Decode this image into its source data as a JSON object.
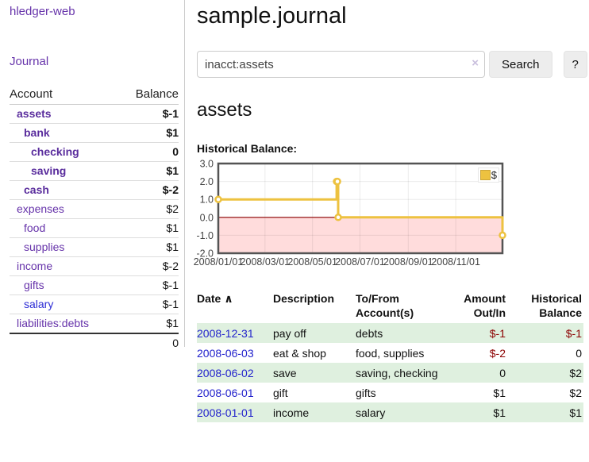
{
  "app": {
    "brand": "hledger-web",
    "nav_journal": "Journal"
  },
  "colors": {
    "link_purple": "#6633aa",
    "link_blue": "#2b2bd5",
    "negative": "#8b0000",
    "negative_muted": "#b36b6b",
    "row_green": "#dff0df",
    "series_yellow": "#edc240",
    "negative_region": "#ffdcdc",
    "zero_line": "#8b0000"
  },
  "sidebar": {
    "accounts_header": {
      "account": "Account",
      "balance": "Balance"
    },
    "accounts": [
      {
        "name": "assets",
        "depth": 1,
        "bold": true,
        "balance": "$-1",
        "negative": "strong"
      },
      {
        "name": "bank",
        "depth": 2,
        "bold": true,
        "balance": "$1",
        "negative": "none"
      },
      {
        "name": "checking",
        "depth": 3,
        "bold": true,
        "balance": "0",
        "negative": "none"
      },
      {
        "name": "saving",
        "depth": 3,
        "bold": true,
        "balance": "$1",
        "negative": "none"
      },
      {
        "name": "cash",
        "depth": 2,
        "bold": true,
        "balance": "$-2",
        "negative": "strong"
      },
      {
        "name": "expenses",
        "depth": 1,
        "bold": false,
        "balance": "$2",
        "negative": "none"
      },
      {
        "name": "food",
        "depth": 2,
        "bold": false,
        "balance": "$1",
        "negative": "none"
      },
      {
        "name": "supplies",
        "depth": 2,
        "bold": false,
        "balance": "$1",
        "negative": "none"
      },
      {
        "name": "income",
        "depth": 1,
        "bold": false,
        "balance": "$-2",
        "negative": "muted"
      },
      {
        "name": "gifts",
        "depth": 2,
        "bold": false,
        "balance": "$-1",
        "negative": "muted"
      },
      {
        "name": "salary",
        "depth": 2,
        "bold": false,
        "balance": "$-1",
        "negative": "muted",
        "blue": true
      },
      {
        "name": "liabilities:debts",
        "depth": 1,
        "bold": false,
        "balance": "$1",
        "negative": "none"
      }
    ],
    "total": "0"
  },
  "header": {
    "title": "sample.journal"
  },
  "search": {
    "query": "inacct:assets",
    "clear_icon": "×",
    "button": "Search",
    "help": "?"
  },
  "account_page": {
    "title": "assets",
    "chart_label": "Historical Balance:"
  },
  "chart_data": {
    "type": "line",
    "title": "Historical Balance:",
    "series": [
      {
        "name": "$",
        "color": "#edc240",
        "step": true,
        "points": [
          [
            "2008-01-01",
            1
          ],
          [
            "2008-06-01",
            2
          ],
          [
            "2008-06-02",
            2
          ],
          [
            "2008-06-03",
            0
          ],
          [
            "2008-12-31",
            -1
          ]
        ]
      }
    ],
    "x_range": [
      "2008-01-01",
      "2008-12-31"
    ],
    "x_ticks": [
      "2008/01/01",
      "2008/03/01",
      "2008/05/01",
      "2008/07/01",
      "2008/09/01",
      "2008/11/01"
    ],
    "y_ticks": [
      3.0,
      2.0,
      1.0,
      0.0,
      -1.0,
      -2.0
    ],
    "ylim": [
      -2.0,
      3.0
    ],
    "grid": true,
    "legend": "$",
    "legend_position": "top-right",
    "negative_region_color": "#ffdcdc",
    "zero_line_color": "#8b0000"
  },
  "register": {
    "columns": [
      "Date",
      "Description",
      "To/From Account(s)",
      "Amount Out/In",
      "Historical Balance"
    ],
    "sort_icon": "∧",
    "rows": [
      {
        "date": "2008-12-31",
        "description": "pay off",
        "accounts": "debts",
        "amount": "$-1",
        "amount_negative": true,
        "balance": "$-1",
        "balance_negative": true
      },
      {
        "date": "2008-06-03",
        "description": "eat & shop",
        "accounts": "food, supplies",
        "amount": "$-2",
        "amount_negative": true,
        "balance": "0",
        "balance_negative": false
      },
      {
        "date": "2008-06-02",
        "description": "save",
        "accounts": "saving, checking",
        "amount": "0",
        "amount_negative": false,
        "balance": "$2",
        "balance_negative": false
      },
      {
        "date": "2008-06-01",
        "description": "gift",
        "accounts": "gifts",
        "amount": "$1",
        "amount_negative": false,
        "balance": "$2",
        "balance_negative": false
      },
      {
        "date": "2008-01-01",
        "description": "income",
        "accounts": "salary",
        "amount": "$1",
        "amount_negative": false,
        "balance": "$1",
        "balance_negative": false
      }
    ]
  }
}
